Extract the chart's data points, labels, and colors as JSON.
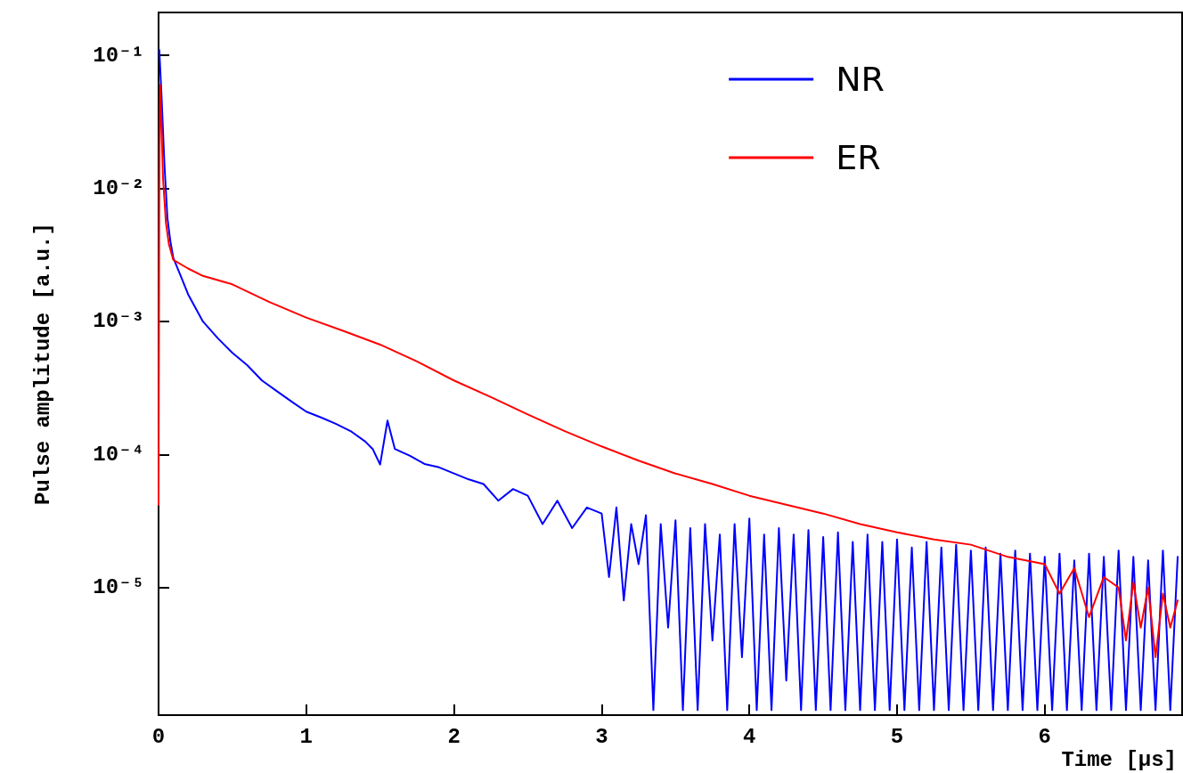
{
  "chart_data": {
    "type": "line",
    "xlabel": "Time [μs]",
    "ylabel": "Pulse amplitude [a.u.]",
    "xlim": [
      0,
      6.93
    ],
    "xticks": [
      0,
      1,
      2,
      3,
      4,
      5,
      6
    ],
    "ylim": [
      1.1e-06,
      0.21
    ],
    "yticks": [
      {
        "value": 0.1,
        "label": "10⁻¹"
      },
      {
        "value": 0.01,
        "label": "10⁻²"
      },
      {
        "value": 0.001,
        "label": "10⁻³"
      },
      {
        "value": 0.0001,
        "label": "10⁻⁴"
      },
      {
        "value": 1e-05,
        "label": "10⁻⁵"
      }
    ],
    "log": "y",
    "grid": false,
    "legend": "top right",
    "marker": "none",
    "line_style": "solid",
    "series": [
      {
        "name": "NR",
        "color": "#0000ff",
        "x": [
          0.005,
          0.02,
          0.04,
          0.06,
          0.08,
          0.1,
          0.15,
          0.2,
          0.3,
          0.4,
          0.5,
          0.6,
          0.7,
          0.8,
          0.9,
          1.0,
          1.1,
          1.2,
          1.3,
          1.4,
          1.45,
          1.5,
          1.55,
          1.6,
          1.7,
          1.8,
          1.9,
          2.0,
          2.1,
          2.2,
          2.3,
          2.4,
          2.5,
          2.6,
          2.7,
          2.8,
          2.9,
          3.0,
          3.05,
          3.1,
          3.15,
          3.2,
          3.25,
          3.3,
          3.35,
          3.4,
          3.45,
          3.5,
          3.55,
          3.6,
          3.65,
          3.7,
          3.75,
          3.8,
          3.85,
          3.9,
          3.95,
          4.0,
          4.05,
          4.1,
          4.15,
          4.2,
          4.25,
          4.3,
          4.35,
          4.4,
          4.45,
          4.5,
          4.55,
          4.6,
          4.65,
          4.7,
          4.75,
          4.8,
          4.85,
          4.9,
          4.95,
          5.0,
          5.05,
          5.1,
          5.15,
          5.2,
          5.25,
          5.3,
          5.35,
          5.4,
          5.45,
          5.5,
          5.55,
          5.6,
          5.65,
          5.7,
          5.75,
          5.8,
          5.85,
          5.9,
          5.95,
          6.0,
          6.05,
          6.1,
          6.15,
          6.2,
          6.25,
          6.3,
          6.35,
          6.4,
          6.45,
          6.5,
          6.55,
          6.6,
          6.65,
          6.7,
          6.75,
          6.8,
          6.85,
          6.9
        ],
        "values": [
          0.11,
          0.05,
          0.015,
          0.006,
          0.004,
          0.003,
          0.0022,
          0.0016,
          0.001,
          0.00075,
          0.00058,
          0.00047,
          0.00036,
          0.0003,
          0.00025,
          0.00021,
          0.00019,
          0.00017,
          0.00015,
          0.000125,
          0.00011,
          8.4e-05,
          0.00018,
          0.00011,
          9.8e-05,
          8.5e-05,
          8e-05,
          7.2e-05,
          6.5e-05,
          6e-05,
          4.5e-05,
          5.5e-05,
          4.9e-05,
          3e-05,
          4.5e-05,
          2.8e-05,
          4e-05,
          3.6e-05,
          1.2e-05,
          4e-05,
          8e-06,
          3e-05,
          1.5e-05,
          3.5e-05,
          1.2e-06,
          3e-05,
          5e-06,
          3.2e-05,
          1.2e-06,
          2.8e-05,
          1.2e-06,
          3e-05,
          4e-06,
          2.5e-05,
          1.2e-06,
          3e-05,
          3e-06,
          3.3e-05,
          1.2e-06,
          2.5e-05,
          1.2e-06,
          2.8e-05,
          2e-06,
          2.5e-05,
          1.2e-06,
          2.7e-05,
          1.2e-06,
          2.4e-05,
          1.2e-06,
          2.6e-05,
          1.2e-06,
          2.2e-05,
          1.2e-06,
          2.5e-05,
          1.2e-06,
          2.2e-05,
          1.2e-06,
          2.3e-05,
          1.2e-06,
          2e-05,
          1.2e-06,
          2.2e-05,
          1.2e-06,
          2e-05,
          1.2e-06,
          2.1e-05,
          1.2e-06,
          1.9e-05,
          1.2e-06,
          2e-05,
          1.2e-06,
          1.8e-05,
          1.2e-06,
          1.9e-05,
          1.2e-06,
          1.8e-05,
          1.2e-06,
          1.7e-05,
          1.2e-06,
          1.8e-05,
          1.2e-06,
          1.6e-05,
          1.2e-06,
          1.8e-05,
          1.2e-06,
          1.7e-05,
          1.2e-06,
          1.9e-05,
          1.2e-06,
          1.7e-05,
          1.2e-06,
          1.6e-05,
          1.2e-06,
          1.9e-05,
          1.2e-06,
          1.7e-05
        ]
      },
      {
        "name": "ER",
        "color": "#ff0000",
        "x": [
          0.0,
          0.005,
          0.01,
          0.02,
          0.03,
          0.05,
          0.07,
          0.1,
          0.2,
          0.3,
          0.5,
          0.75,
          1.0,
          1.25,
          1.5,
          1.75,
          2.0,
          2.25,
          2.5,
          2.75,
          3.0,
          3.25,
          3.5,
          3.75,
          4.0,
          4.25,
          4.5,
          4.75,
          5.0,
          5.25,
          5.5,
          5.75,
          6.0,
          6.1,
          6.2,
          6.3,
          6.4,
          6.5,
          6.55,
          6.6,
          6.65,
          6.7,
          6.75,
          6.8,
          6.85,
          6.9
        ],
        "values": [
          4.2e-05,
          0.01,
          0.06,
          0.03,
          0.012,
          0.0055,
          0.0038,
          0.0029,
          0.0025,
          0.0022,
          0.0019,
          0.0014,
          0.00107,
          0.00085,
          0.00067,
          0.0005,
          0.00036,
          0.00027,
          0.0002,
          0.00015,
          0.000115,
          9e-05,
          7.2e-05,
          6e-05,
          4.9e-05,
          4.2e-05,
          3.6e-05,
          3e-05,
          2.6e-05,
          2.3e-05,
          2.1e-05,
          1.7e-05,
          1.5e-05,
          9e-06,
          1.4e-05,
          6e-06,
          1.2e-05,
          1e-05,
          4e-06,
          1.1e-05,
          5e-06,
          1e-05,
          3e-06,
          9e-06,
          5e-06,
          8e-06
        ]
      }
    ]
  }
}
